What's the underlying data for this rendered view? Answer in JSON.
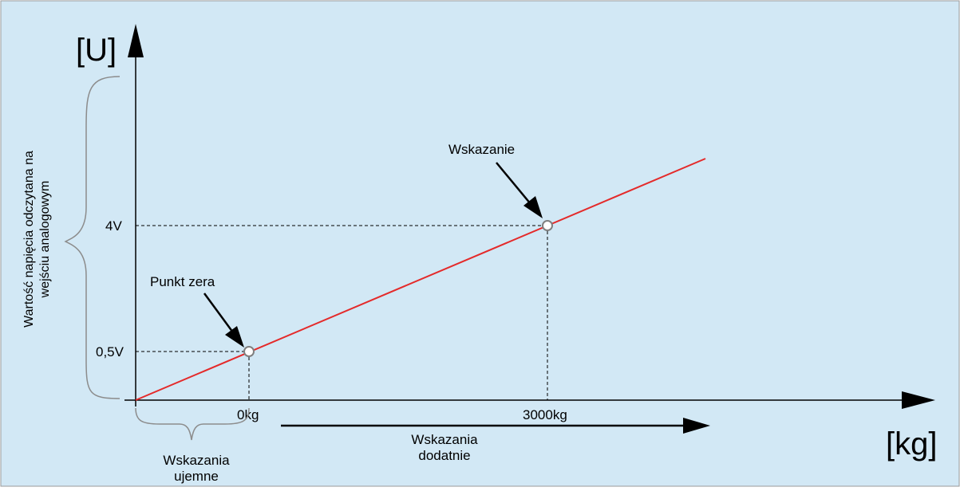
{
  "diagram": {
    "colors": {
      "background": "#D2E8F5",
      "line": "#E42A2A",
      "axis": "#000000",
      "guide": "#000000",
      "marker": "#7F7F7F",
      "brace": "#8C8C8C"
    },
    "axes": {
      "y_label": "[U]",
      "x_label": "[kg]"
    },
    "ticks": {
      "y_low": "0,5V",
      "y_high": "4V",
      "x_zero": "0kg",
      "x_high": "3000kg"
    },
    "annotations": {
      "zero_point": "Punkt zera",
      "reading": "Wskazanie"
    },
    "side_label": {
      "line1": "Wartość napięcia odczytana na",
      "line2": "wejściu analogowym"
    },
    "negative": {
      "line1": "Wskazania",
      "line2": "ujemne"
    },
    "positive": {
      "line1": "Wskazania",
      "line2": "dodatnie"
    }
  }
}
